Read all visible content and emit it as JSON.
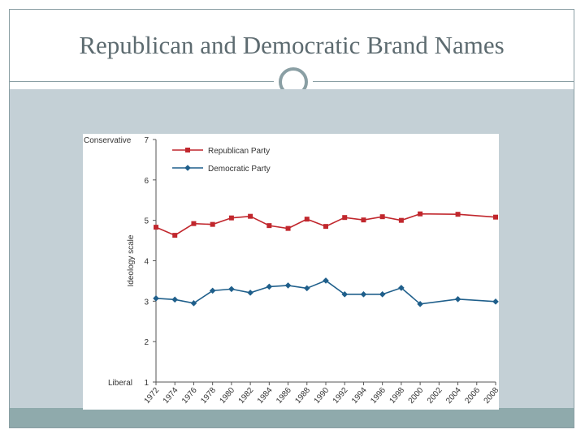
{
  "slide": {
    "title": "Republican and Democratic Brand Names"
  },
  "chart_data": {
    "type": "line",
    "x": [
      "1972",
      "1974",
      "1976",
      "1978",
      "1980",
      "1982",
      "1984",
      "1986",
      "1988",
      "1990",
      "1992",
      "1994",
      "1996",
      "1998",
      "2000",
      "2002",
      "2004",
      "2006",
      "2008"
    ],
    "x_values": [
      1972,
      1974,
      1976,
      1978,
      1980,
      1982,
      1984,
      1986,
      1988,
      1990,
      1992,
      1994,
      1996,
      1998,
      2000,
      2002,
      2004,
      2006,
      2008
    ],
    "ylabel": "Ideology scale",
    "ylim": [
      1,
      7
    ],
    "yticks": [
      1,
      2,
      3,
      4,
      5,
      6,
      7
    ],
    "y_end_labels": {
      "bottom": "Liberal",
      "top": "Conservative"
    },
    "grid": false,
    "legend": "top-left",
    "series": [
      {
        "name": "Republican Party",
        "color": "#c1272d",
        "marker": "square",
        "points": [
          [
            1972,
            4.83
          ],
          [
            1974,
            4.63
          ],
          [
            1976,
            4.92
          ],
          [
            1978,
            4.9
          ],
          [
            1980,
            5.06
          ],
          [
            1982,
            5.1
          ],
          [
            1984,
            4.87
          ],
          [
            1986,
            4.8
          ],
          [
            1988,
            5.03
          ],
          [
            1990,
            4.85
          ],
          [
            1992,
            5.07
          ],
          [
            1994,
            5.01
          ],
          [
            1996,
            5.09
          ],
          [
            1998,
            5.0
          ],
          [
            2000,
            5.16
          ],
          [
            2004,
            5.15
          ],
          [
            2008,
            5.08
          ]
        ]
      },
      {
        "name": "Democratic Party",
        "color": "#1f5f8b",
        "marker": "diamond",
        "points": [
          [
            1972,
            3.07
          ],
          [
            1974,
            3.04
          ],
          [
            1976,
            2.95
          ],
          [
            1978,
            3.26
          ],
          [
            1980,
            3.3
          ],
          [
            1982,
            3.21
          ],
          [
            1984,
            3.36
          ],
          [
            1986,
            3.39
          ],
          [
            1988,
            3.32
          ],
          [
            1990,
            3.51
          ],
          [
            1992,
            3.17
          ],
          [
            1994,
            3.17
          ],
          [
            1996,
            3.17
          ],
          [
            1998,
            3.33
          ],
          [
            2000,
            2.93
          ],
          [
            2004,
            3.05
          ],
          [
            2008,
            2.99
          ]
        ]
      }
    ]
  }
}
